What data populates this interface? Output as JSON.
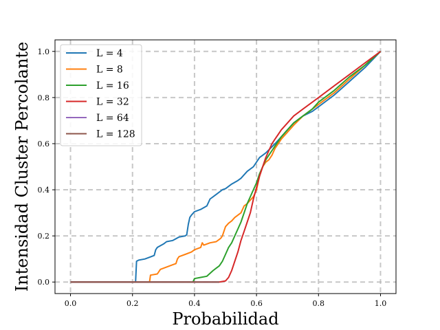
{
  "chart_data": {
    "type": "line",
    "title": "",
    "xlabel": "Probabilidad",
    "ylabel": "Intensidad Cluster Percolante",
    "xlim": [
      -0.05,
      1.05
    ],
    "ylim": [
      -0.05,
      1.05
    ],
    "xticks": [
      "0.0",
      "0.2",
      "0.4",
      "0.6",
      "0.8",
      "1.0"
    ],
    "yticks": [
      "0.0",
      "0.2",
      "0.4",
      "0.6",
      "0.8",
      "1.0"
    ],
    "grid": true,
    "legend_position": "upper-left",
    "series": [
      {
        "name": "L = 4",
        "color": "#1f77b4",
        "x": [
          0.0,
          0.21,
          0.213,
          0.22,
          0.24,
          0.26,
          0.27,
          0.275,
          0.28,
          0.3,
          0.31,
          0.33,
          0.35,
          0.37,
          0.375,
          0.38,
          0.385,
          0.39,
          0.4,
          0.42,
          0.44,
          0.45,
          0.47,
          0.49,
          0.5,
          0.52,
          0.54,
          0.55,
          0.57,
          0.59,
          0.61,
          0.63,
          0.66,
          0.68,
          0.7,
          0.72,
          0.75,
          0.78,
          0.8,
          0.85,
          0.9,
          0.95,
          1.0
        ],
        "y": [
          0.0,
          0.0,
          0.09,
          0.095,
          0.1,
          0.11,
          0.115,
          0.14,
          0.15,
          0.165,
          0.175,
          0.18,
          0.195,
          0.2,
          0.205,
          0.25,
          0.28,
          0.29,
          0.305,
          0.315,
          0.33,
          0.36,
          0.38,
          0.4,
          0.405,
          0.425,
          0.44,
          0.45,
          0.48,
          0.5,
          0.54,
          0.56,
          0.6,
          0.63,
          0.66,
          0.69,
          0.72,
          0.74,
          0.76,
          0.81,
          0.87,
          0.93,
          1.0
        ]
      },
      {
        "name": "L = 8",
        "color": "#ff7f0e",
        "x": [
          0.0,
          0.255,
          0.258,
          0.28,
          0.29,
          0.31,
          0.33,
          0.34,
          0.345,
          0.35,
          0.37,
          0.39,
          0.4,
          0.41,
          0.42,
          0.425,
          0.43,
          0.45,
          0.47,
          0.48,
          0.485,
          0.49,
          0.5,
          0.51,
          0.52,
          0.53,
          0.55,
          0.56,
          0.57,
          0.58,
          0.59,
          0.6,
          0.61,
          0.62,
          0.63,
          0.64,
          0.65,
          0.66,
          0.67,
          0.68,
          0.7,
          0.72,
          0.75,
          0.78,
          0.8,
          0.85,
          0.9,
          0.95,
          1.0
        ],
        "y": [
          0.0,
          0.0,
          0.03,
          0.035,
          0.055,
          0.065,
          0.075,
          0.08,
          0.1,
          0.11,
          0.12,
          0.13,
          0.14,
          0.145,
          0.15,
          0.17,
          0.16,
          0.17,
          0.175,
          0.185,
          0.19,
          0.2,
          0.24,
          0.255,
          0.265,
          0.28,
          0.3,
          0.33,
          0.34,
          0.355,
          0.37,
          0.4,
          0.46,
          0.5,
          0.52,
          0.53,
          0.55,
          0.58,
          0.6,
          0.62,
          0.65,
          0.68,
          0.72,
          0.75,
          0.77,
          0.82,
          0.88,
          0.94,
          1.0
        ]
      },
      {
        "name": "L = 16",
        "color": "#2ca02c",
        "x": [
          0.0,
          0.395,
          0.4,
          0.42,
          0.44,
          0.46,
          0.47,
          0.48,
          0.49,
          0.5,
          0.51,
          0.52,
          0.53,
          0.54,
          0.55,
          0.56,
          0.57,
          0.58,
          0.59,
          0.6,
          0.61,
          0.62,
          0.63,
          0.64,
          0.65,
          0.66,
          0.67,
          0.68,
          0.7,
          0.72,
          0.75,
          0.78,
          0.8,
          0.85,
          0.9,
          0.95,
          1.0
        ],
        "y": [
          0.0,
          0.0,
          0.015,
          0.02,
          0.025,
          0.05,
          0.06,
          0.07,
          0.09,
          0.12,
          0.15,
          0.17,
          0.2,
          0.23,
          0.26,
          0.3,
          0.34,
          0.37,
          0.4,
          0.43,
          0.47,
          0.5,
          0.53,
          0.55,
          0.57,
          0.59,
          0.61,
          0.63,
          0.66,
          0.69,
          0.72,
          0.75,
          0.78,
          0.83,
          0.89,
          0.94,
          1.0
        ]
      },
      {
        "name": "L = 32",
        "color": "#d62728",
        "x": [
          0.0,
          0.48,
          0.5,
          0.51,
          0.52,
          0.53,
          0.54,
          0.55,
          0.56,
          0.57,
          0.58,
          0.59,
          0.6,
          0.61,
          0.62,
          0.63,
          0.64,
          0.65,
          0.66,
          0.67,
          0.68,
          0.7,
          0.72,
          0.75,
          0.78,
          0.8,
          0.85,
          0.9,
          0.95,
          1.0
        ],
        "y": [
          0.0,
          0.0,
          0.005,
          0.02,
          0.05,
          0.09,
          0.13,
          0.18,
          0.22,
          0.26,
          0.3,
          0.36,
          0.41,
          0.46,
          0.5,
          0.54,
          0.57,
          0.6,
          0.62,
          0.64,
          0.66,
          0.69,
          0.72,
          0.75,
          0.78,
          0.8,
          0.85,
          0.9,
          0.95,
          1.0
        ]
      },
      {
        "name": "L = 64",
        "color": "#9467bd",
        "x": [
          0.0,
          0.48
        ],
        "y": [
          0.0,
          0.0
        ]
      },
      {
        "name": "L = 128",
        "color": "#8c564b",
        "x": [
          0.0,
          0.48
        ],
        "y": [
          0.0,
          0.0
        ]
      }
    ]
  }
}
